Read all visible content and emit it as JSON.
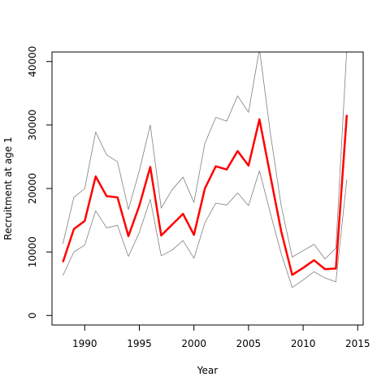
{
  "chart_data": {
    "type": "line",
    "title": "",
    "xlabel": "Year",
    "ylabel": "Recruitment at age 1",
    "xlim": [
      1987,
      2015.5
    ],
    "ylim": [
      -1500,
      41500
    ],
    "grid": false,
    "legend": "none",
    "x_ticks": [
      1990,
      1995,
      2000,
      2005,
      2010,
      2015
    ],
    "y_ticks": [
      0,
      10000,
      20000,
      30000,
      40000
    ],
    "x": [
      1988,
      1989,
      1990,
      1991,
      1992,
      1993,
      1994,
      1995,
      1996,
      1997,
      1998,
      1999,
      2000,
      2001,
      2002,
      2003,
      2004,
      2005,
      2006,
      2007,
      2008,
      2009,
      2010,
      2011,
      2012,
      2013,
      2014
    ],
    "series": [
      {
        "role": "upper",
        "color": "#808080",
        "values": [
          11300,
          18600,
          20000,
          28900,
          25300,
          24200,
          16700,
          22800,
          30000,
          16900,
          19800,
          21800,
          17800,
          27100,
          31200,
          30600,
          34600,
          32000,
          42000,
          28700,
          17200,
          9200,
          10200,
          11200,
          8900,
          10600,
          42000
        ]
      },
      {
        "role": "estimate",
        "color": "#ff0000",
        "values": [
          8400,
          13600,
          14900,
          21900,
          18800,
          18600,
          12500,
          17300,
          23400,
          12600,
          14300,
          16000,
          12700,
          20000,
          23500,
          23000,
          25900,
          23600,
          30900,
          22000,
          13200,
          6400,
          7500,
          8700,
          7300,
          7400,
          31600
        ]
      },
      {
        "role": "lower",
        "color": "#808080",
        "values": [
          6300,
          10000,
          11100,
          16500,
          13800,
          14200,
          9300,
          13100,
          18300,
          9400,
          10300,
          11800,
          9000,
          14600,
          17700,
          17400,
          19300,
          17300,
          22800,
          16100,
          9700,
          4400,
          5600,
          6900,
          5900,
          5300,
          21400
        ]
      }
    ]
  }
}
